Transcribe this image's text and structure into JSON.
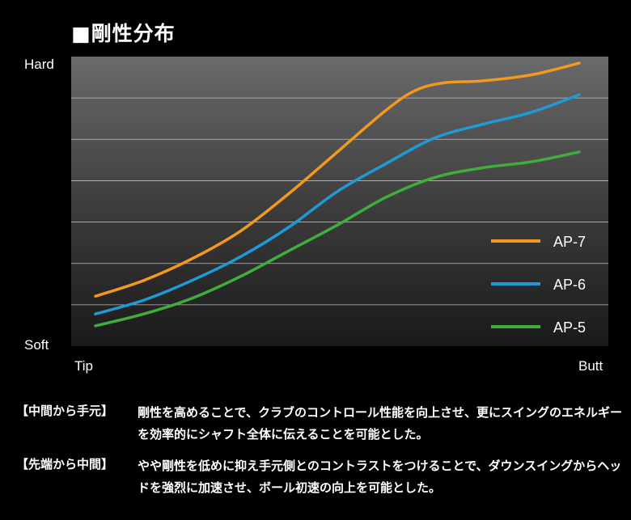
{
  "title": "■剛性分布",
  "chart_data": {
    "type": "line",
    "xlabel_left": "Tip",
    "xlabel_right": "Butt",
    "ylabel_top": "Hard",
    "ylabel_bottom": "Soft",
    "xlim": [
      0,
      100
    ],
    "ylim": [
      0,
      7
    ],
    "grid": true,
    "legend_position": "right",
    "series": [
      {
        "name": "AP-7",
        "color": "#F39A1E",
        "x": [
          0,
          10,
          20,
          30,
          40,
          50,
          60,
          66,
          72,
          80,
          90,
          100
        ],
        "y": [
          1.1,
          1.5,
          2.05,
          2.75,
          3.7,
          4.75,
          5.8,
          6.3,
          6.5,
          6.55,
          6.7,
          7.0
        ]
      },
      {
        "name": "AP-6",
        "color": "#1E9BD7",
        "x": [
          0,
          10,
          20,
          30,
          40,
          50,
          60,
          70,
          80,
          90,
          100
        ],
        "y": [
          0.65,
          1.0,
          1.5,
          2.1,
          2.85,
          3.75,
          4.45,
          5.1,
          5.45,
          5.75,
          6.2
        ]
      },
      {
        "name": "AP-5",
        "color": "#3FAE3C",
        "x": [
          0,
          10,
          20,
          30,
          40,
          50,
          60,
          70,
          80,
          90,
          100
        ],
        "y": [
          0.35,
          0.65,
          1.05,
          1.6,
          2.25,
          2.9,
          3.6,
          4.1,
          4.35,
          4.5,
          4.75
        ]
      }
    ]
  },
  "notes": [
    {
      "heading": "【中間から手元】",
      "body": "剛性を高めることで、クラブのコントロール性能を向上させ、更にスイングのエネルギーを効率的にシャフト全体に伝えることを可能とした。"
    },
    {
      "heading": "【先端から中間】",
      "body": "やや剛性を低めに抑え手元側とのコントラストをつけることで、ダウンスイングからヘッドを強烈に加速させ、ボール初速の向上を可能とした。"
    }
  ]
}
